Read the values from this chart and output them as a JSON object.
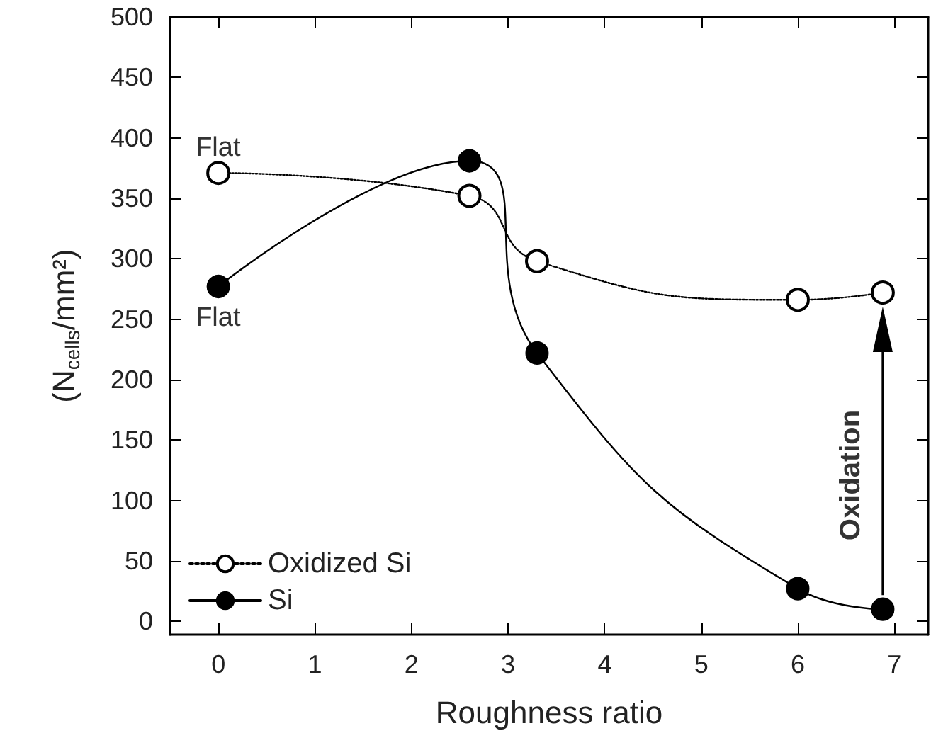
{
  "chart_data": {
    "type": "line",
    "xlabel": "Roughness ratio",
    "ylabel": "(N$_{cells}$/mm²)",
    "xlim": [
      -0.5,
      7.35
    ],
    "xticks": [
      0,
      1,
      2,
      3,
      4,
      5,
      6,
      7
    ],
    "ylim": [
      -11,
      500
    ],
    "yticks": [
      0,
      50,
      100,
      150,
      200,
      250,
      300,
      350,
      400,
      450,
      500
    ],
    "grid": false,
    "legend": "bottom left",
    "series": [
      {
        "name": "Oxidized Si",
        "color": "#000000",
        "x": [
          0,
          2.6,
          3.3,
          6,
          6.88
        ],
        "values": [
          371,
          352,
          298,
          266,
          272
        ],
        "line_style": "dotted",
        "marker": "open circle"
      },
      {
        "name": "Si",
        "color": "#000000",
        "x": [
          0,
          2.6,
          3.3,
          6,
          6.88
        ],
        "values": [
          277,
          381,
          222,
          27,
          10
        ],
        "line_style": "solid",
        "marker": "circle"
      }
    ],
    "annotations": [
      {
        "text": "Flat",
        "x": 0,
        "y": 371
      },
      {
        "text": "Flat",
        "x": 0,
        "y": 277
      },
      "Oxidation"
    ]
  }
}
